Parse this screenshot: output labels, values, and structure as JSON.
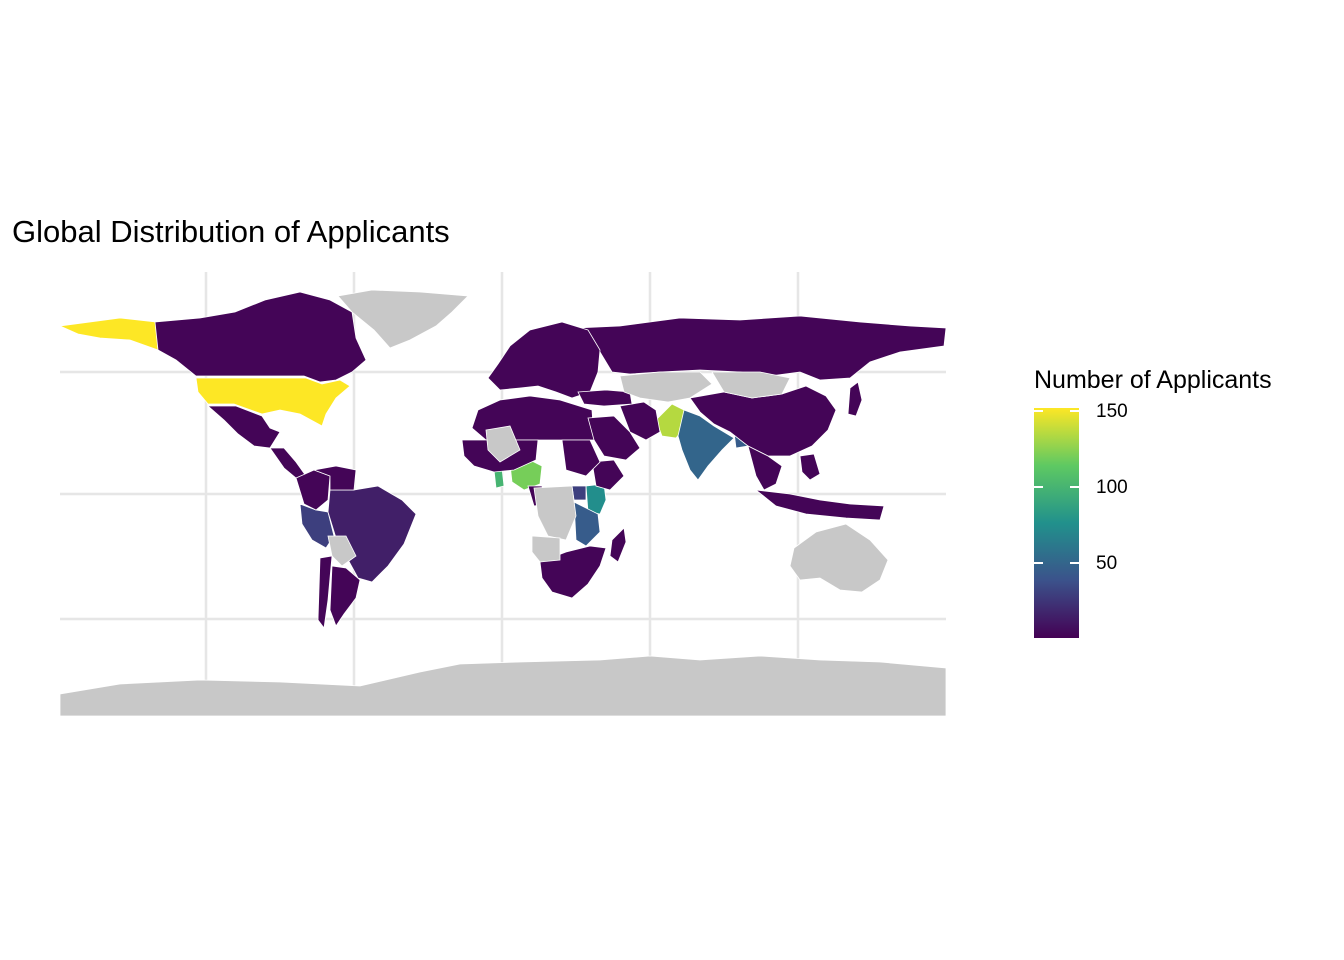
{
  "title": "Global Distribution of Applicants",
  "legend": {
    "title": "Number of Applicants",
    "breaks": [
      "150",
      "100",
      "50"
    ],
    "break_values": [
      150,
      100,
      50
    ],
    "min": 1,
    "max": 152,
    "palette": [
      "#440154",
      "#3b528b",
      "#21918c",
      "#5ec962",
      "#fde725"
    ]
  },
  "colors": {
    "no_data": "#c8c8c8",
    "grid": "#e6e6e6",
    "border": "#ffffff"
  },
  "chart_data": {
    "type": "choropleth",
    "variable": "Number of Applicants",
    "regions": [
      {
        "name": "United States",
        "value": 152
      },
      {
        "name": "Alaska",
        "value": 152
      },
      {
        "name": "Pakistan",
        "value": 135
      },
      {
        "name": "Nigeria",
        "value": 120
      },
      {
        "name": "Ghana",
        "value": 100
      },
      {
        "name": "Kenya",
        "value": 75
      },
      {
        "name": "India",
        "value": 50
      },
      {
        "name": "Tanzania",
        "value": 45
      },
      {
        "name": "Bangladesh",
        "value": 45
      },
      {
        "name": "Peru",
        "value": 30
      },
      {
        "name": "Brazil",
        "value": 15
      },
      {
        "name": "Uganda",
        "value": 30
      },
      {
        "name": "Canada",
        "value": 3
      },
      {
        "name": "Mexico",
        "value": 3
      },
      {
        "name": "Central America",
        "value": 3
      },
      {
        "name": "Colombia",
        "value": 3
      },
      {
        "name": "Venezuela",
        "value": 3
      },
      {
        "name": "Argentina",
        "value": 3
      },
      {
        "name": "Chile",
        "value": 3
      },
      {
        "name": "Russia",
        "value": 3
      },
      {
        "name": "China",
        "value": 3
      },
      {
        "name": "Europe",
        "value": 3
      },
      {
        "name": "North Africa",
        "value": 3
      },
      {
        "name": "West Africa",
        "value": 3
      },
      {
        "name": "Ethiopia",
        "value": 3
      },
      {
        "name": "Sudan",
        "value": 3
      },
      {
        "name": "Cameroon",
        "value": 3
      },
      {
        "name": "Southern Africa",
        "value": 3
      },
      {
        "name": "Madagascar",
        "value": 3
      },
      {
        "name": "Iran",
        "value": 3
      },
      {
        "name": "Saudi Arabia",
        "value": 3
      },
      {
        "name": "Turkey",
        "value": 3
      },
      {
        "name": "Southeast Asia",
        "value": 3
      },
      {
        "name": "Indonesia",
        "value": 3
      },
      {
        "name": "Philippines",
        "value": 3
      },
      {
        "name": "Japan",
        "value": 3
      },
      {
        "name": "Greenland",
        "value": null
      },
      {
        "name": "Australia",
        "value": null
      },
      {
        "name": "Antarctica",
        "value": null
      },
      {
        "name": "Kazakhstan",
        "value": null
      },
      {
        "name": "Mongolia",
        "value": null
      },
      {
        "name": "Congo",
        "value": null
      },
      {
        "name": "Angola",
        "value": null
      },
      {
        "name": "Algeria",
        "value": null
      },
      {
        "name": "Bolivia",
        "value": null
      }
    ]
  }
}
